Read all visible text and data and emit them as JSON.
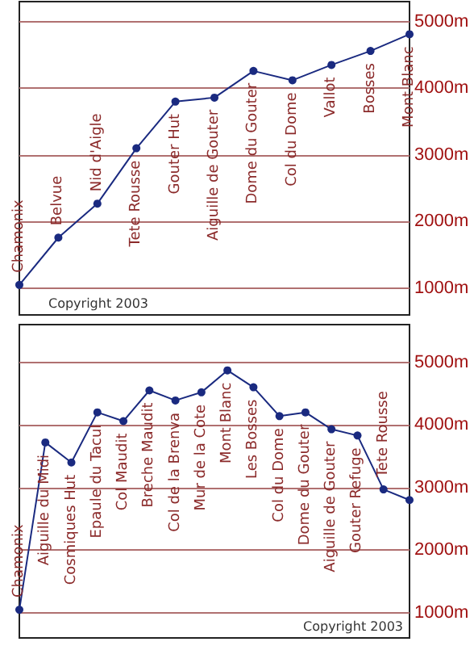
{
  "chart_data": [
    {
      "type": "line",
      "categories": [
        "Chamonix",
        "Belvue",
        "Nid d'Aigle",
        "Tete Rousse",
        "Gouter Hut",
        "Aiguille de Gouter",
        "Dome du Gouter",
        "Col du Dome",
        "Vallot",
        "Bosses",
        "Mont Blanc"
      ],
      "series": [
        {
          "color": "#1a2a80",
          "values": [
            1050,
            1760,
            2270,
            3100,
            3800,
            3860,
            4260,
            4120,
            4350,
            4560,
            4810
          ]
        }
      ],
      "ylim": [
        600,
        5300
      ],
      "yticks": [
        {
          "value": 1000,
          "label": "1000m"
        },
        {
          "value": 2000,
          "label": "2000m"
        },
        {
          "value": 3000,
          "label": "3000m"
        },
        {
          "value": 4000,
          "label": "4000m"
        },
        {
          "value": 5000,
          "label": "5000m"
        }
      ],
      "grid": "y",
      "marker": "circle",
      "tick_labels": "y",
      "annotations": [
        "Copyright 2003"
      ]
    },
    {
      "type": "line",
      "categories": [
        "Chamonix",
        "Aiguille du Midi",
        "Cosmiques Hut",
        "Epaule du Tacul",
        "Col Maudit",
        "Breche Maudit",
        "Col de la Brenva",
        "Mur de la Cote",
        "Mont Blanc",
        "Les Bosses",
        "Col du Dome",
        "Dome du Gouter",
        "Aiguille de Gouter",
        "Gouter Refuge",
        "Tete Rousse",
        null
      ],
      "series": [
        {
          "color": "#1a2a80",
          "values": [
            1050,
            3720,
            3400,
            4200,
            4060,
            4550,
            4390,
            4520,
            4870,
            4600,
            4140,
            4200,
            3930,
            3830,
            2970,
            2800
          ]
        }
      ],
      "ylim": [
        600,
        5600
      ],
      "yticks": [
        {
          "value": 1000,
          "label": "1000m"
        },
        {
          "value": 2000,
          "label": "2000m"
        },
        {
          "value": 3000,
          "label": "3000m"
        },
        {
          "value": 4000,
          "label": "4000m"
        },
        {
          "value": 5000,
          "label": "5000m"
        }
      ],
      "grid": "y",
      "marker": "circle",
      "tick_labels": "y",
      "annotations": [
        "Copyright 2003"
      ]
    }
  ]
}
